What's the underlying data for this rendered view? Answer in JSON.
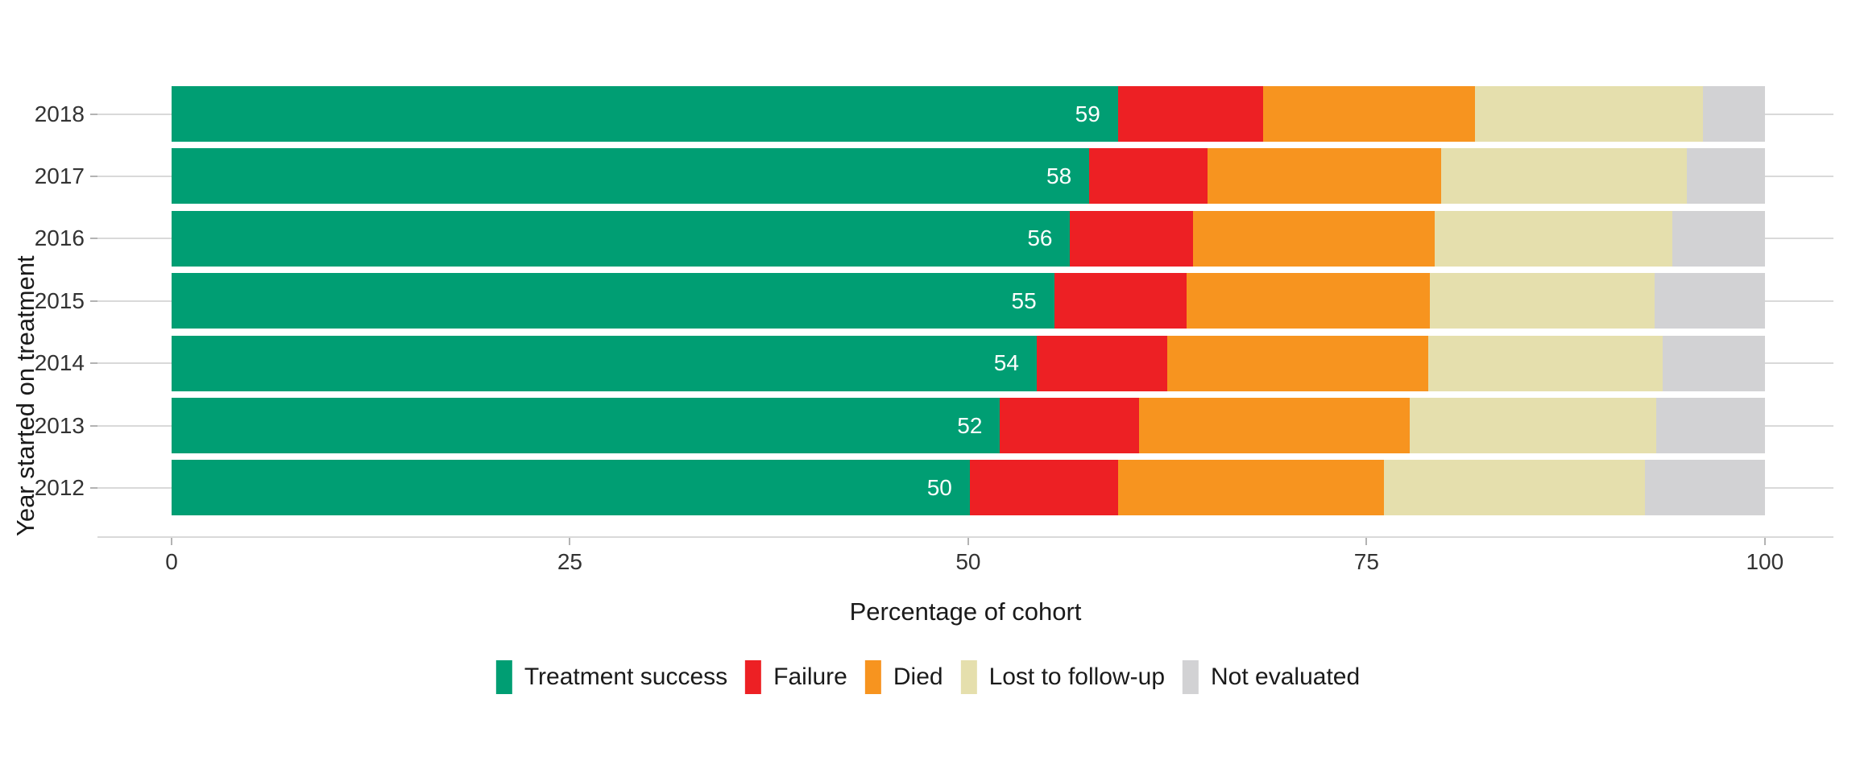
{
  "chart_data": {
    "type": "bar",
    "orientation": "horizontal",
    "stacked": true,
    "title": "",
    "xlabel": "Percentage of cohort",
    "ylabel": "Year started on treatment",
    "xlim": [
      0,
      100
    ],
    "x_ticks": [
      0,
      25,
      50,
      75,
      100
    ],
    "grid": "horizontal-row-lines",
    "legend_position": "bottom",
    "categories": [
      "2018",
      "2017",
      "2016",
      "2015",
      "2014",
      "2013",
      "2012"
    ],
    "series": [
      {
        "name": "Treatment success",
        "color": "#009E73",
        "values": [
          59.4,
          57.6,
          56.4,
          55.4,
          54.3,
          52.0,
          50.1
        ],
        "bar_labels": [
          "59",
          "58",
          "56",
          "55",
          "54",
          "52",
          "50"
        ]
      },
      {
        "name": "Failure",
        "color": "#ED2024",
        "values": [
          9.1,
          7.4,
          7.7,
          8.3,
          8.2,
          8.7,
          9.3
        ]
      },
      {
        "name": "Died",
        "color": "#F7941F",
        "values": [
          13.3,
          14.7,
          15.2,
          15.3,
          16.4,
          17.0,
          16.7
        ]
      },
      {
        "name": "Lost to follow-up",
        "color": "#E5DFAD",
        "values": [
          14.3,
          15.4,
          14.9,
          14.1,
          14.7,
          15.5,
          16.4
        ]
      },
      {
        "name": "Not evaluated",
        "color": "#D2D2D4",
        "values": [
          3.9,
          4.9,
          5.8,
          6.9,
          6.4,
          6.8,
          7.5
        ]
      }
    ]
  }
}
